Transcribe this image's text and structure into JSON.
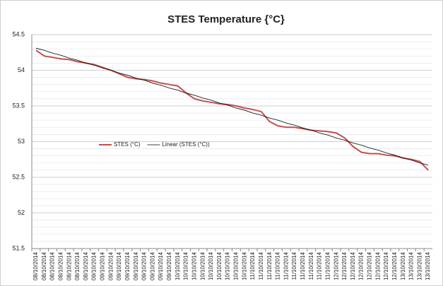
{
  "chart_data": {
    "type": "line",
    "title": "STES Temperature {°C}",
    "categories": [
      "08/10/2014",
      "08/10/2014",
      "08/10/2014",
      "08/10/2014",
      "08/10/2014",
      "08/10/2014",
      "08/10/2014",
      "09/10/2014",
      "09/10/2014",
      "09/10/2014",
      "09/10/2014",
      "09/10/2014",
      "09/10/2014",
      "09/10/2014",
      "09/10/2014",
      "09/10/2014",
      "09/10/2014",
      "10/10/2014",
      "10/10/2014",
      "10/10/2014",
      "10/10/2014",
      "10/10/2014",
      "10/10/2014",
      "10/10/2014",
      "10/10/2014",
      "10/10/2014",
      "11/10/2014",
      "11/10/2014",
      "11/10/2014",
      "11/10/2014",
      "11/10/2014",
      "11/10/2014",
      "11/10/2014",
      "11/10/2014",
      "11/10/2014",
      "11/10/2014",
      "12/10/2014",
      "12/10/2014",
      "12/10/2014",
      "12/10/2014",
      "12/10/2014",
      "12/10/2014",
      "12/10/2014",
      "12/10/2014",
      "13/10/2014",
      "13/10/2014",
      "13/10/2014",
      "13/10/2014"
    ],
    "series": [
      {
        "name": "STES (°C)",
        "color": "#c0504d",
        "width": 2,
        "values": [
          54.28,
          54.2,
          54.18,
          54.16,
          54.15,
          54.12,
          54.1,
          54.08,
          54.04,
          54.0,
          53.95,
          53.9,
          53.88,
          53.87,
          53.85,
          53.82,
          53.8,
          53.78,
          53.68,
          53.6,
          53.57,
          53.55,
          53.53,
          53.52,
          53.5,
          53.47,
          53.45,
          53.42,
          53.28,
          53.22,
          53.2,
          53.2,
          53.18,
          53.16,
          53.15,
          53.14,
          53.12,
          53.05,
          52.93,
          52.85,
          52.83,
          52.83,
          52.81,
          52.8,
          52.77,
          52.75,
          52.72,
          52.6
        ]
      },
      {
        "name": "Linear (STES (°C))",
        "color": "#000000",
        "width": 0.8,
        "values": [
          54.31,
          54.28,
          54.24,
          54.21,
          54.17,
          54.14,
          54.1,
          54.07,
          54.03,
          54.0,
          53.96,
          53.93,
          53.89,
          53.86,
          53.82,
          53.79,
          53.75,
          53.72,
          53.68,
          53.65,
          53.61,
          53.58,
          53.54,
          53.51,
          53.47,
          53.44,
          53.4,
          53.37,
          53.33,
          53.3,
          53.26,
          53.23,
          53.19,
          53.16,
          53.12,
          53.09,
          53.05,
          53.02,
          52.98,
          52.95,
          52.91,
          52.88,
          52.84,
          52.81,
          52.77,
          52.74,
          52.7,
          52.67
        ]
      }
    ],
    "ylim": [
      51.5,
      54.5
    ],
    "yticks": [
      51.5,
      52,
      52.5,
      53,
      53.5,
      54,
      54.5
    ],
    "minor_yticks": [
      51.6,
      51.7,
      51.8,
      51.9,
      52.1,
      52.2,
      52.3,
      52.4,
      52.6,
      52.7,
      52.8,
      52.9,
      53.1,
      53.2,
      53.3,
      53.4,
      53.6,
      53.7,
      53.8,
      53.9,
      54.1,
      54.2,
      54.3,
      54.4
    ],
    "grid": true,
    "legend": "center-left"
  }
}
